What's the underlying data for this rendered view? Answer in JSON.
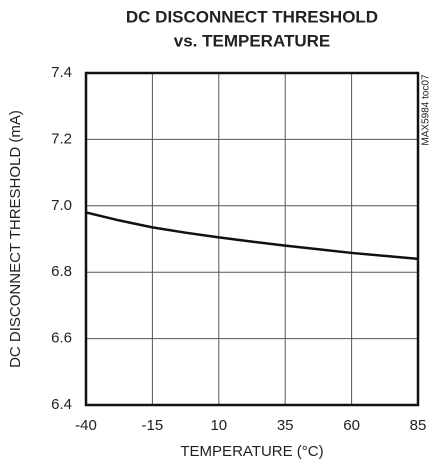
{
  "chart_data": {
    "type": "line",
    "title": [
      "DC DISCONNECT THRESHOLD",
      "vs. TEMPERATURE"
    ],
    "x_label": "TEMPERATURE (°C)",
    "y_label": "DC DISCONNECT THRESHOLD (mA)",
    "annotation": "MAX5984 toc07",
    "x": [
      -40,
      -27.5,
      -15,
      -2.5,
      10,
      22.5,
      35,
      47.5,
      60,
      72.5,
      85
    ],
    "series": [
      {
        "color": "#111111",
        "values": [
          6.98,
          6.956,
          6.935,
          6.919,
          6.905,
          6.892,
          6.88,
          6.869,
          6.858,
          6.849,
          6.84
        ]
      }
    ],
    "xlim": [
      -40,
      85
    ],
    "xticks": [
      -40,
      -15,
      10,
      35,
      60,
      85
    ],
    "ylim": [
      6.4,
      7.4
    ],
    "yticks": [
      6.4,
      6.6,
      6.8,
      {
        "value": 7,
        "label": "7.0"
      },
      7.2,
      7.4
    ],
    "grid": true
  }
}
